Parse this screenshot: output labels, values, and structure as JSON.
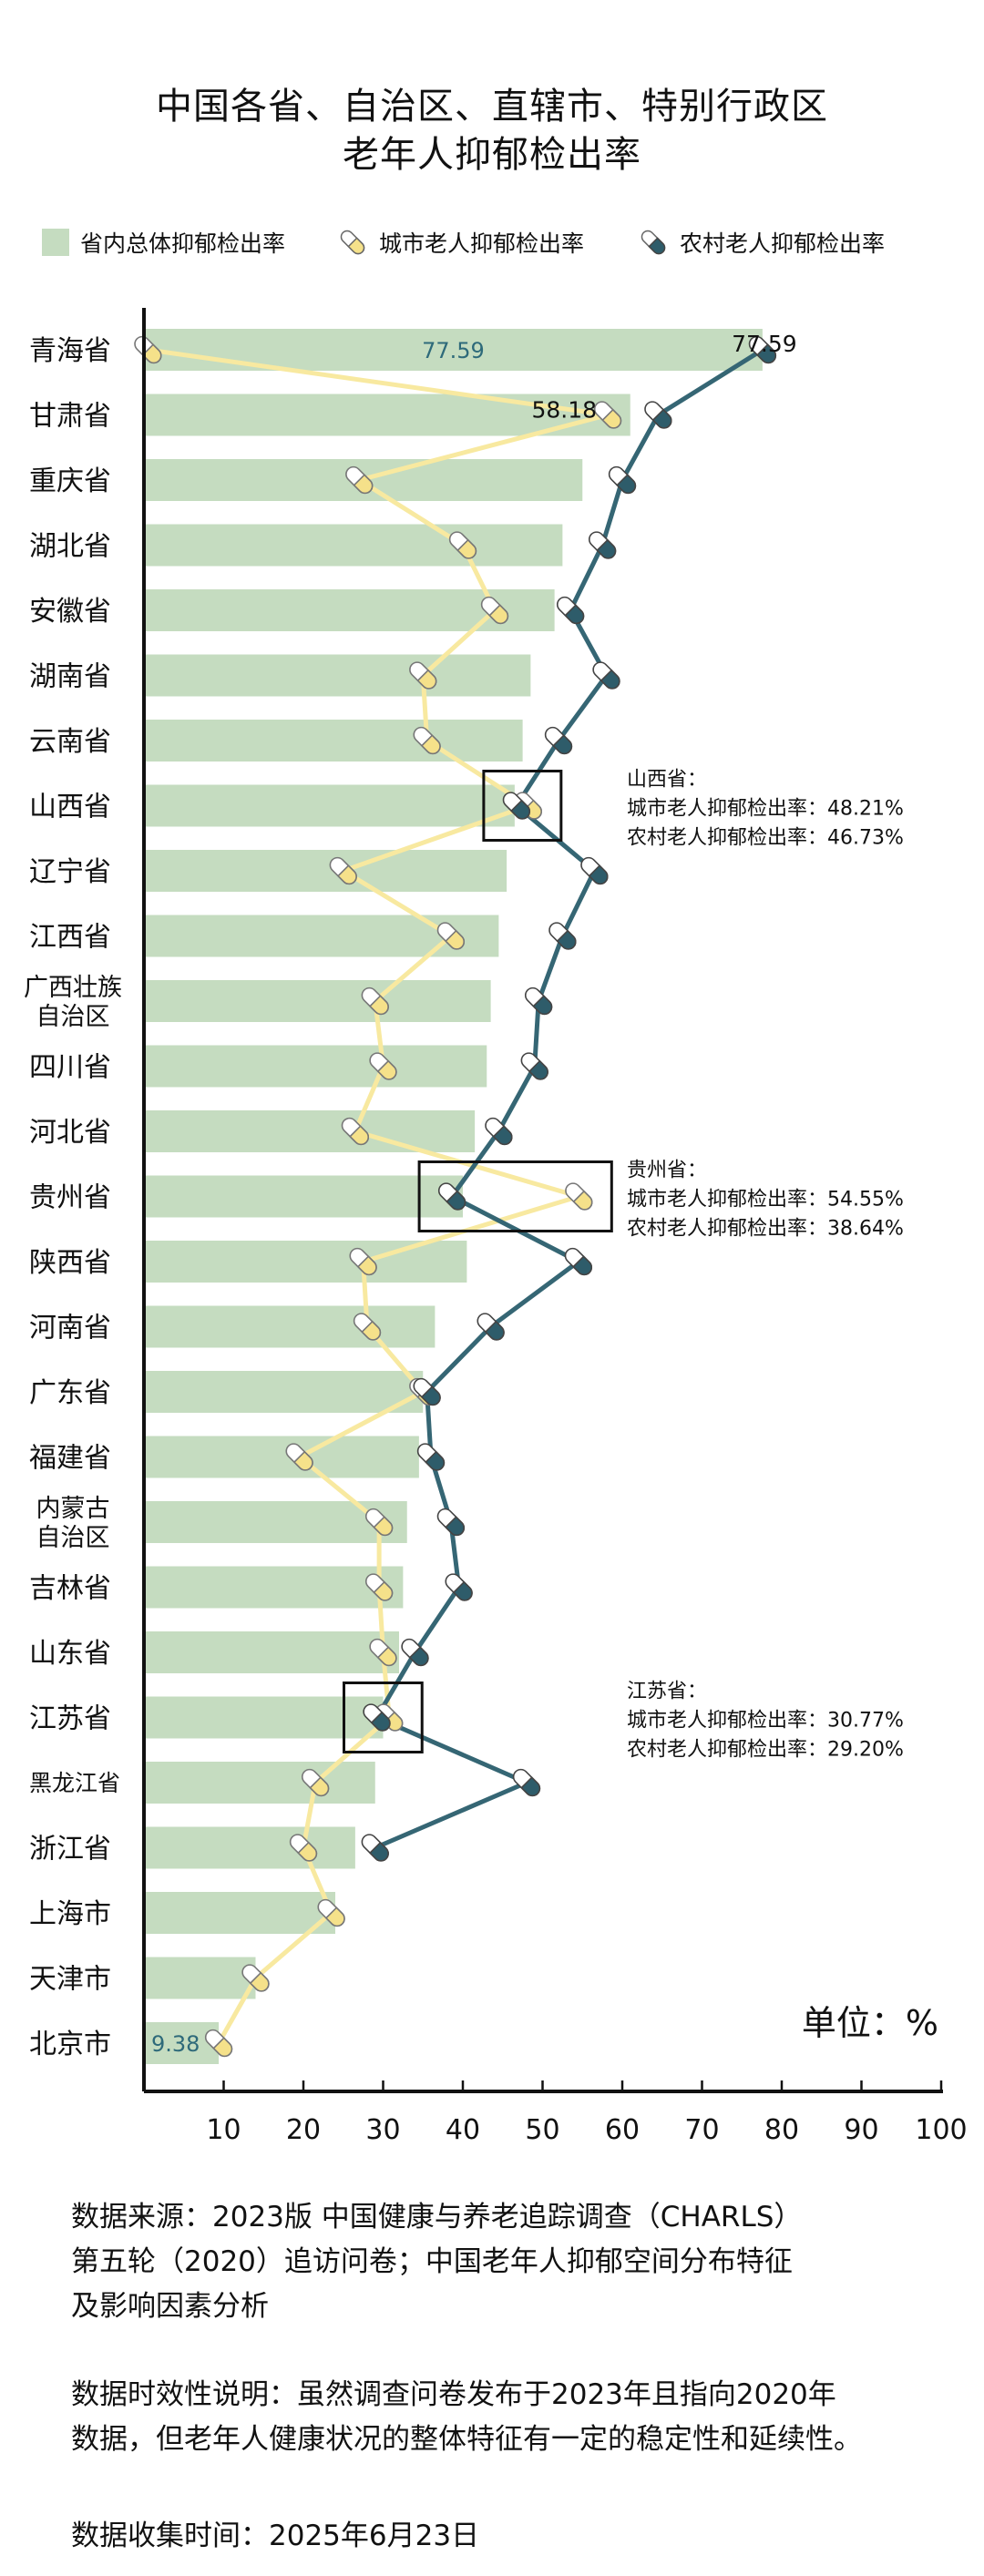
{
  "title_lines": [
    "中国各省、自治区、直辖市、特别行政区",
    "老年人抑郁检出率"
  ],
  "legend": {
    "total": "省内总体抑郁检出率",
    "urban": "城市老人抑郁检出率",
    "rural": "农村老人抑郁检出率"
  },
  "colors": {
    "bar": "#c5dcc0",
    "urban_line": "#f8e9a0",
    "urban_pill": "#f5e18a",
    "rural_line": "#356674",
    "rural_pill": "#2e5c6a",
    "axis": "#111111",
    "value_label": "#2e6a7a"
  },
  "unit_label": "单位：%",
  "chart_data": {
    "type": "bar",
    "categories": [
      "青海省",
      "甘肃省",
      "重庆省",
      "湖北省",
      "安徽省",
      "湖南省",
      "云南省",
      "山西省",
      "辽宁省",
      "江西省",
      "广西壮族\n自治区",
      "四川省",
      "河北省",
      "贵州省",
      "陕西省",
      "河南省",
      "广东省",
      "福建省",
      "内蒙古\n自治区",
      "吉林省",
      "山东省",
      "江苏省",
      "黑龙江省",
      "浙江省",
      "上海市",
      "天津市",
      "北京市"
    ],
    "series": [
      {
        "name": "省内总体抑郁检出率",
        "values": [
          77.59,
          61,
          55,
          52.5,
          51.5,
          48.5,
          47.5,
          46.5,
          45.5,
          44.5,
          43.5,
          43,
          41.5,
          40,
          40.5,
          36.5,
          35,
          34.5,
          33,
          32.5,
          32,
          30,
          29,
          26.5,
          24,
          14,
          9.38
        ]
      },
      {
        "name": "城市老人抑郁检出率",
        "values": [
          0.5,
          58.18,
          27,
          40,
          44,
          35,
          35.5,
          48.21,
          25,
          38.5,
          29,
          30,
          26.5,
          54.55,
          27.5,
          28,
          35,
          19.5,
          29.5,
          29.5,
          30,
          30.77,
          21.5,
          20,
          23.5,
          14,
          9.38
        ]
      },
      {
        "name": "农村老人抑郁检出率",
        "values": [
          77.59,
          64.5,
          60,
          57.5,
          53.5,
          58,
          52,
          46.73,
          56.5,
          52.5,
          49.5,
          49,
          44.5,
          38.64,
          54.5,
          43.5,
          35.5,
          36,
          38.5,
          39.5,
          34,
          29.2,
          48,
          29,
          null,
          null,
          null
        ]
      }
    ],
    "xlim": [
      0,
      100
    ],
    "x_ticks": [
      10,
      20,
      30,
      40,
      50,
      60,
      70,
      80,
      90,
      100
    ],
    "data_labels": [
      {
        "category": "青海省",
        "series": "省内总体抑郁检出率",
        "text": "77.59"
      },
      {
        "category": "青海省",
        "series": "农村老人抑郁检出率",
        "text": "77.59"
      },
      {
        "category": "甘肃省",
        "series": "城市老人抑郁检出率",
        "text": "58.18"
      },
      {
        "category": "北京市",
        "series": "省内总体抑郁检出率",
        "text": "9.38"
      }
    ],
    "annotations": [
      {
        "category": "山西省",
        "lines": [
          "山西省：",
          "城市老人抑郁检出率：48.21%",
          "农村老人抑郁检出率：46.73%"
        ]
      },
      {
        "category": "贵州省",
        "lines": [
          "贵州省：",
          "城市老人抑郁检出率：54.55%",
          "农村老人抑郁检出率：38.64%"
        ]
      },
      {
        "category": "江苏省",
        "lines": [
          "江苏省：",
          "城市老人抑郁检出率：30.77%",
          "农村老人抑郁检出率：29.20%"
        ]
      }
    ]
  },
  "notes": {
    "source_lines": [
      "数据来源：2023版 中国健康与养老追踪调查（CHARLS）",
      "第五轮（2020）追访问卷；中国老年人抑郁空间分布特征",
      "及影响因素分析"
    ],
    "validity_lines": [
      "数据时效性说明：虽然调查问卷发布于2023年且指向2020年",
      "数据，但老年人健康状况的整体特征有一定的稳定性和延续性。"
    ],
    "collected": "数据收集时间：2025年6月23日"
  }
}
